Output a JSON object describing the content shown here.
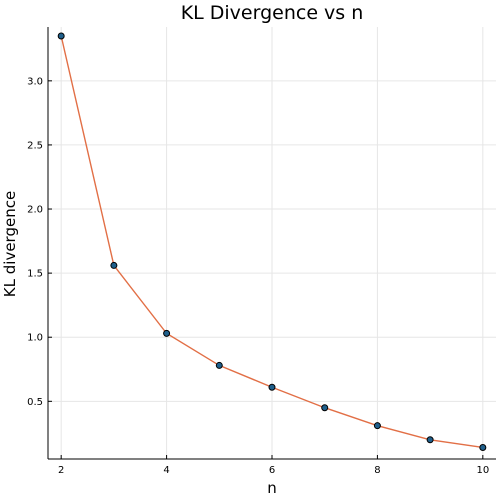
{
  "chart_data": {
    "type": "line",
    "title": "KL Divergence vs n",
    "xlabel": "n",
    "ylabel": "KL divergence",
    "xlim": [
      1.75,
      10.25
    ],
    "ylim": [
      0.05,
      3.42
    ],
    "xticks": [
      2,
      4,
      6,
      8,
      10
    ],
    "xtick_labels": [
      "2",
      "4",
      "6",
      "8",
      "10"
    ],
    "yticks": [
      0.5,
      1.0,
      1.5,
      2.0,
      2.5,
      3.0
    ],
    "ytick_labels": [
      "0.5",
      "1.0",
      "1.5",
      "2.0",
      "2.5",
      "3.0"
    ],
    "grid": true,
    "legend": "none",
    "series": [
      {
        "x": [
          2,
          3,
          4,
          5,
          6,
          7,
          8,
          9,
          10
        ],
        "y": [
          3.35,
          1.56,
          1.03,
          0.78,
          0.61,
          0.45,
          0.31,
          0.2,
          0.14
        ],
        "line_color": "#e26f46",
        "marker_color": "#1f5f8b"
      }
    ]
  }
}
